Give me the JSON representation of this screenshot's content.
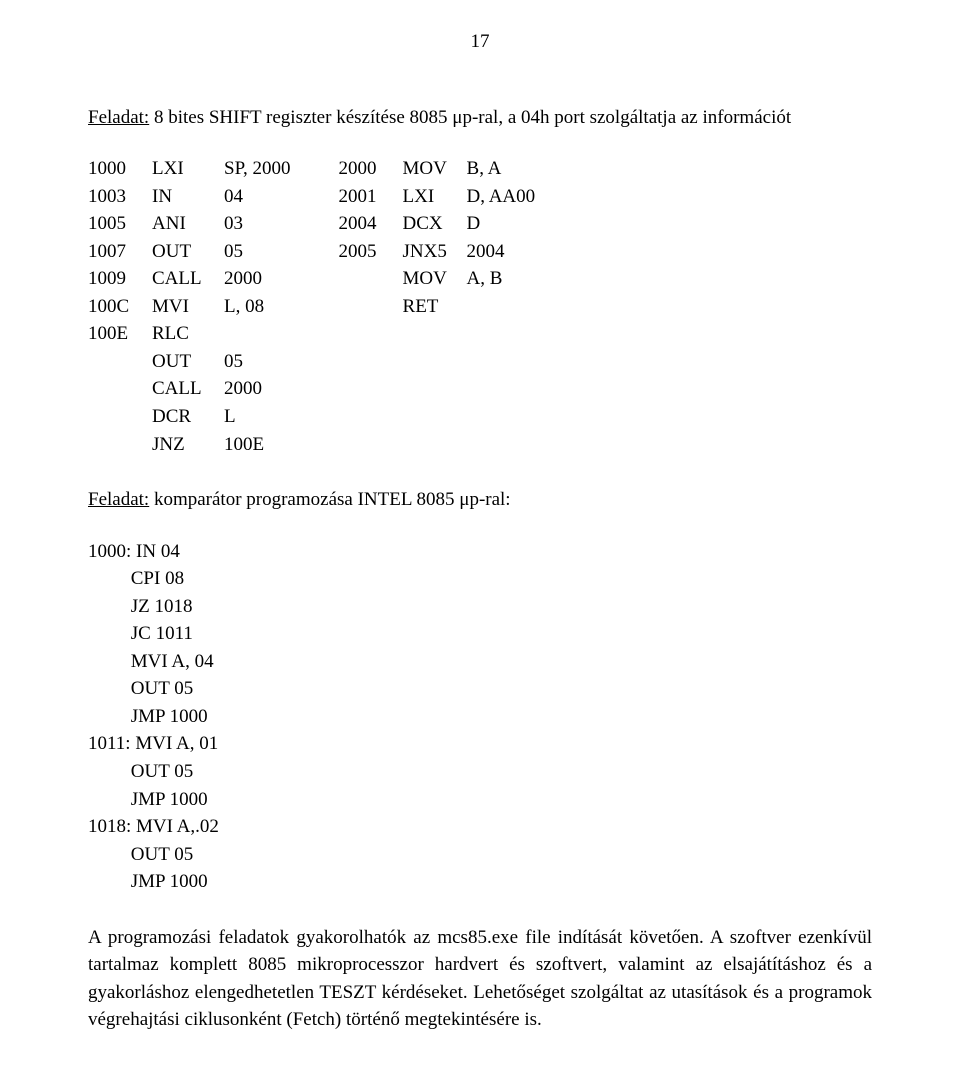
{
  "page_number": "17",
  "task1": {
    "label": "Feladat:",
    "title_rest": " 8 bites SHIFT regiszter készítése 8085 μp-ral, a 04h port szolgáltatja az információt",
    "left": [
      {
        "addr": "1000",
        "mnem": "LXI",
        "oper": "SP, 2000"
      },
      {
        "addr": "1003",
        "mnem": "IN",
        "oper": "04"
      },
      {
        "addr": "1005",
        "mnem": "ANI",
        "oper": "03"
      },
      {
        "addr": "1007",
        "mnem": "OUT",
        "oper": "05"
      },
      {
        "addr": "1009",
        "mnem": "CALL",
        "oper": "2000"
      },
      {
        "addr": "100C",
        "mnem": "MVI",
        "oper": "L, 08"
      },
      {
        "addr": "100E",
        "mnem": "RLC",
        "oper": ""
      },
      {
        "addr": "",
        "mnem": "OUT",
        "oper": "05"
      },
      {
        "addr": "",
        "mnem": "CALL",
        "oper": "2000"
      },
      {
        "addr": "",
        "mnem": "DCR",
        "oper": "L"
      },
      {
        "addr": "",
        "mnem": "JNZ",
        "oper": "100E"
      }
    ],
    "right": [
      {
        "addr": "2000",
        "mnem": "MOV",
        "oper": "B, A"
      },
      {
        "addr": "2001",
        "mnem": "LXI",
        "oper": "D, AA00"
      },
      {
        "addr": "2004",
        "mnem": "DCX",
        "oper": "D"
      },
      {
        "addr": "2005",
        "mnem": "JNX5",
        "oper": "2004"
      },
      {
        "addr": "",
        "mnem": "MOV",
        "oper": "A, B"
      },
      {
        "addr": "",
        "mnem": "RET",
        "oper": ""
      }
    ]
  },
  "task2": {
    "label": "Feladat:",
    "title_rest": " komparátor programozása INTEL 8085 μp-ral:",
    "code": "1000: IN 04\n         CPI 08\n         JZ 1018\n         JC 1011\n         MVI A, 04\n         OUT 05\n         JMP 1000\n1011: MVI A, 01\n         OUT 05\n         JMP 1000\n1018: MVI A,.02\n         OUT 05\n         JMP 1000"
  },
  "body_text": "A programozási feladatok gyakorolhatók az mcs85.exe file indítását követően. A szoftver ezenkívül tartalmaz komplett 8085 mikroprocesszor hardvert és szoftvert, valamint az elsajátításhoz és a gyakorláshoz elengedhetetlen TESZT kérdéseket. Lehetőséget szolgáltat az utasítások és a programok végrehajtási ciklusonként (Fetch) történő megtekintésére is."
}
